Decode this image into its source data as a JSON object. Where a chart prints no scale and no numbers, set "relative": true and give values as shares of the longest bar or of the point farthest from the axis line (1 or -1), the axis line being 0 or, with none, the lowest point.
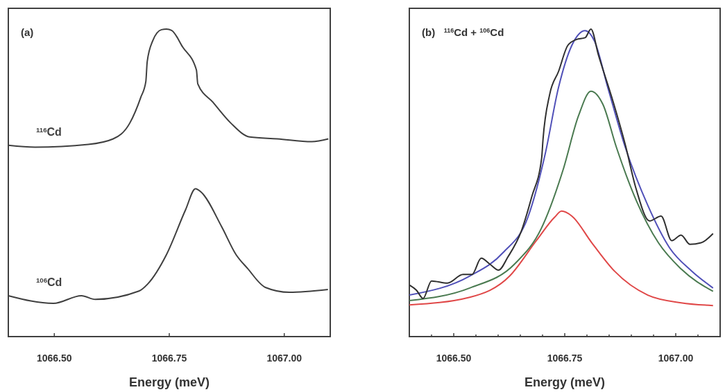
{
  "chart_data": [
    {
      "type": "line",
      "relative": true,
      "tick_labels": "x",
      "xlabel": "Energy (meV)",
      "annotations": [
        "(a)"
      ],
      "xlim": [
        1066.4,
        1067.1
      ],
      "xticks": [
        {
          "value": 1066.5,
          "label": "1066.50"
        },
        {
          "value": 1066.75,
          "label": "1066.75"
        },
        {
          "value": 1067,
          "label": "1067.00"
        }
      ],
      "series": [
        {
          "name": "$^{116}$Cd",
          "color": "#404040",
          "x": [
            1066.4,
            1066.458,
            1066.574,
            1066.628,
            1066.664,
            1066.688,
            1066.699,
            1066.702,
            1066.714,
            1066.733,
            1066.744,
            1066.755,
            1066.779,
            1066.809,
            1066.812,
            1066.845,
            1066.884,
            1066.925,
            1066.985,
            1067.06,
            1067.096
          ],
          "values": [
            0.622,
            0.616,
            0.625,
            0.643,
            0.694,
            0.778,
            0.829,
            0.894,
            0.962,
            0.998,
            1.0,
            0.996,
            0.942,
            0.867,
            0.822,
            0.762,
            0.694,
            0.649,
            0.643,
            0.634,
            0.643
          ]
        },
        {
          "name": "$^{106}$Cd",
          "color": "#404040",
          "x": [
            1066.4,
            1066.498,
            1066.559,
            1066.589,
            1066.684,
            1066.703,
            1066.744,
            1066.785,
            1066.807,
            1066.819,
            1066.864,
            1066.895,
            1066.92,
            1066.959,
            1067.011,
            1067.095
          ],
          "values": [
            0.133,
            0.108,
            0.133,
            0.121,
            0.148,
            0.171,
            0.267,
            0.411,
            0.481,
            0.47,
            0.357,
            0.267,
            0.222,
            0.16,
            0.144,
            0.153
          ]
        }
      ]
    },
    {
      "type": "line",
      "relative": true,
      "tick_labels": "x",
      "xlabel": "Energy (meV)",
      "annotations": [
        "(b)   $^{116}$Cd + $^{106}$Cd"
      ],
      "xlim": [
        1066.4,
        1067.1
      ],
      "xticks": [
        {
          "value": 1066.45,
          "label": null
        },
        {
          "value": 1066.5,
          "label": "1066.50"
        },
        {
          "value": 1066.55,
          "label": null
        },
        {
          "value": 1066.6,
          "label": null
        },
        {
          "value": 1066.65,
          "label": null
        },
        {
          "value": 1066.7,
          "label": null
        },
        {
          "value": 1066.75,
          "label": "1066.75"
        },
        {
          "value": 1066.8,
          "label": null
        },
        {
          "value": 1066.85,
          "label": null
        },
        {
          "value": 1066.9,
          "label": null
        },
        {
          "value": 1066.95,
          "label": null
        },
        {
          "value": 1067,
          "label": "1067.00"
        },
        {
          "value": 1067.05,
          "label": null
        }
      ],
      "series": [
        {
          "color": "#e04848",
          "x": [
            1066.4,
            1066.536,
            1066.626,
            1066.686,
            1066.727,
            1066.743,
            1066.766,
            1066.811,
            1066.862,
            1066.937,
            1067.012,
            1067.084
          ],
          "values": [
            0.103,
            0.128,
            0.197,
            0.312,
            0.388,
            0.408,
            0.392,
            0.305,
            0.213,
            0.135,
            0.11,
            0.101
          ]
        },
        {
          "color": "#4a7a50",
          "x": [
            1066.4,
            1066.536,
            1066.637,
            1066.697,
            1066.746,
            1066.781,
            1066.809,
            1066.836,
            1066.866,
            1066.911,
            1066.961,
            1067.012,
            1067.084
          ],
          "values": [
            0.117,
            0.158,
            0.236,
            0.351,
            0.541,
            0.718,
            0.798,
            0.755,
            0.617,
            0.443,
            0.305,
            0.22,
            0.147
          ]
        },
        {
          "color": "#5050b8",
          "x": [
            1066.4,
            1066.536,
            1066.611,
            1066.667,
            1066.706,
            1066.736,
            1066.766,
            1066.796,
            1066.817,
            1066.847,
            1066.886,
            1066.937,
            1066.986,
            1067.036,
            1067.084
          ],
          "values": [
            0.135,
            0.197,
            0.273,
            0.388,
            0.594,
            0.81,
            0.947,
            0.995,
            0.961,
            0.81,
            0.617,
            0.427,
            0.289,
            0.213,
            0.158
          ]
        },
        {
          "color": "#303030",
          "x": [
            1066.401,
            1066.416,
            1066.431,
            1066.45,
            1066.486,
            1066.521,
            1066.541,
            1066.562,
            1066.581,
            1066.601,
            1066.622,
            1066.652,
            1066.676,
            1066.698,
            1066.701,
            1066.716,
            1066.736,
            1066.757,
            1066.776,
            1066.796,
            1066.809,
            1066.826,
            1066.856,
            1066.886,
            1066.911,
            1066.941,
            1066.967,
            1066.991,
            1067.012,
            1067.032,
            1067.057,
            1067.084
          ],
          "values": [
            0.167,
            0.151,
            0.124,
            0.181,
            0.174,
            0.202,
            0.202,
            0.255,
            0.236,
            0.216,
            0.259,
            0.342,
            0.456,
            0.58,
            0.64,
            0.787,
            0.862,
            0.947,
            0.966,
            0.972,
            1.0,
            0.915,
            0.778,
            0.626,
            0.479,
            0.376,
            0.392,
            0.312,
            0.33,
            0.3,
            0.305,
            0.335
          ]
        }
      ]
    }
  ]
}
